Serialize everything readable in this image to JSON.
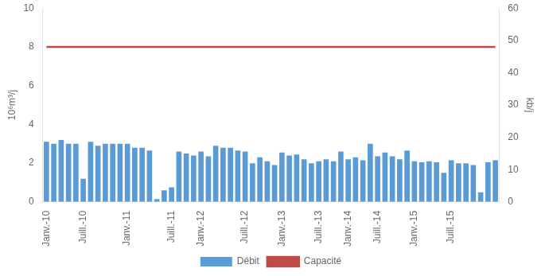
{
  "chart_data": {
    "type": "bar",
    "ylabel": "10⁶m³/j",
    "y2label": "kb/j",
    "categories": [
      "Janv.-10",
      null,
      null,
      null,
      null,
      "Juill.-10",
      null,
      null,
      null,
      null,
      null,
      "Janv.-11",
      null,
      null,
      null,
      null,
      null,
      "Juill.-11",
      null,
      null,
      null,
      "Janv.-12",
      null,
      null,
      null,
      null,
      null,
      "Juill.-12",
      null,
      null,
      null,
      null,
      "Janv.-13",
      null,
      null,
      null,
      null,
      "Juill.-13",
      null,
      null,
      null,
      "Janv.-14",
      null,
      null,
      null,
      "Juill.-14",
      null,
      null,
      null,
      null,
      "Janv.-15",
      null,
      null,
      null,
      null,
      "Juill.-15",
      null,
      null,
      null,
      null,
      null,
      null
    ],
    "series": [
      {
        "name": "Débit",
        "type": "bar",
        "color": "#5B9BD5",
        "values": [
          3.1,
          3.0,
          3.2,
          3.0,
          3.0,
          1.2,
          3.1,
          2.9,
          3.0,
          3.0,
          3.0,
          3.0,
          2.8,
          2.8,
          2.65,
          0.15,
          0.6,
          0.75,
          2.6,
          2.5,
          2.4,
          2.6,
          2.35,
          2.9,
          2.8,
          2.8,
          2.65,
          2.6,
          2.0,
          2.3,
          2.1,
          1.9,
          2.55,
          2.4,
          2.45,
          2.2,
          2.0,
          2.1,
          2.2,
          2.1,
          2.6,
          2.2,
          2.3,
          2.15,
          3.0,
          2.35,
          2.55,
          2.35,
          2.2,
          2.65,
          2.1,
          2.05,
          2.1,
          2.05,
          1.5,
          2.15,
          2.0,
          2.0,
          1.9,
          0.5,
          2.05,
          2.15
        ]
      },
      {
        "name": "Capacité",
        "type": "line",
        "color": "#BE4B48",
        "values": [
          8.0,
          8.0,
          8.0,
          8.0,
          8.0,
          8.0,
          8.0,
          8.0,
          8.0,
          8.0,
          8.0,
          8.0,
          8.0,
          8.0,
          8.0,
          8.0,
          8.0,
          8.0,
          8.0,
          8.0,
          8.0,
          8.0,
          8.0,
          8.0,
          8.0,
          8.0,
          8.0,
          8.0,
          8.0,
          8.0,
          8.0,
          8.0,
          8.0,
          8.0,
          8.0,
          8.0,
          8.0,
          8.0,
          8.0,
          8.0,
          8.0,
          8.0,
          8.0,
          8.0,
          8.0,
          8.0,
          8.0,
          8.0,
          8.0,
          8.0,
          8.0,
          8.0,
          8.0,
          8.0,
          8.0,
          8.0,
          8.0,
          8.0,
          8.0,
          8.0,
          8.0,
          8.0
        ]
      }
    ],
    "ylim": [
      0,
      10
    ],
    "yticks": [
      0,
      2,
      4,
      6,
      8,
      10
    ],
    "y2lim": [
      0,
      60
    ],
    "y2ticks": [
      0,
      10,
      20,
      30,
      40,
      50,
      60
    ],
    "grid": false,
    "legend": "bottom"
  }
}
